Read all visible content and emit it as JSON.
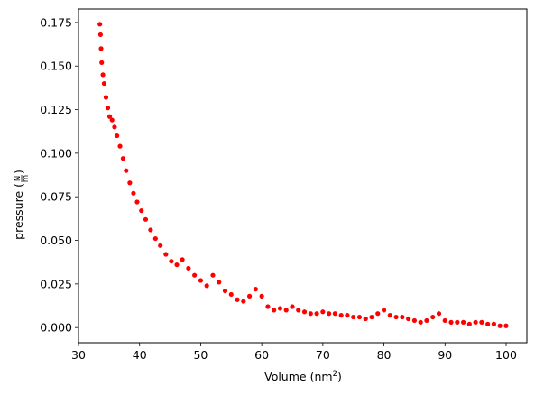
{
  "chart_data": {
    "type": "scatter",
    "xlabel": "Volume (nm²)",
    "xlabel_parts": {
      "base": "Volume (nm",
      "exp": "2",
      "close": ")"
    },
    "ylabel": "pressure (N/m)",
    "ylabel_parts": {
      "prefix": "pressure (",
      "num": "N",
      "den": "m",
      "close": ")"
    },
    "xlim": [
      30,
      103.4
    ],
    "ylim": [
      -0.0087,
      0.1827
    ],
    "xticks": [
      30,
      40,
      50,
      60,
      70,
      80,
      90,
      100
    ],
    "xtick_labels": [
      "30",
      "40",
      "50",
      "60",
      "70",
      "80",
      "90",
      "100"
    ],
    "yticks": [
      0.0,
      0.025,
      0.05,
      0.075,
      0.1,
      0.125,
      0.15,
      0.175
    ],
    "ytick_labels": [
      "0.000",
      "0.025",
      "0.050",
      "0.075",
      "0.100",
      "0.125",
      "0.150",
      "0.175"
    ],
    "marker_color": "#ff0000",
    "grid": false,
    "legend": "none",
    "series": [
      {
        "x": [
          33.5,
          33.6,
          33.7,
          33.8,
          34.0,
          34.2,
          34.5,
          34.8,
          35.1,
          35.5,
          35.9,
          36.3,
          36.8,
          37.3,
          37.8,
          38.4,
          39.0,
          39.6,
          40.3,
          41.0,
          41.8,
          42.6,
          43.4,
          44.3,
          45.2,
          46.1,
          47.0,
          48.0,
          49.0,
          50.0,
          51.0,
          52.0,
          53.0,
          54.0,
          55.0,
          56.0,
          57.0,
          58.0,
          59.0,
          60.0,
          61.0,
          62.0,
          63.0,
          64.0,
          65.0,
          66.0,
          67.0,
          68.0,
          69.0,
          70.0,
          71.0,
          72.0,
          73.0,
          74.0,
          75.0,
          76.0,
          77.0,
          78.0,
          79.0,
          80.0,
          81.0,
          82.0,
          83.0,
          84.0,
          85.0,
          86.0,
          87.0,
          88.0,
          89.0,
          90.0,
          91.0,
          92.0,
          93.0,
          94.0,
          95.0,
          96.0,
          97.0,
          98.0,
          99.0,
          100.0
        ],
        "y": [
          0.174,
          0.168,
          0.16,
          0.152,
          0.145,
          0.14,
          0.132,
          0.126,
          0.121,
          0.119,
          0.115,
          0.11,
          0.104,
          0.097,
          0.09,
          0.083,
          0.077,
          0.072,
          0.067,
          0.062,
          0.056,
          0.051,
          0.047,
          0.042,
          0.038,
          0.036,
          0.039,
          0.034,
          0.03,
          0.027,
          0.024,
          0.03,
          0.026,
          0.021,
          0.019,
          0.016,
          0.015,
          0.018,
          0.022,
          0.018,
          0.012,
          0.01,
          0.011,
          0.01,
          0.012,
          0.01,
          0.009,
          0.008,
          0.008,
          0.009,
          0.008,
          0.008,
          0.007,
          0.007,
          0.006,
          0.006,
          0.005,
          0.006,
          0.008,
          0.01,
          0.007,
          0.006,
          0.006,
          0.005,
          0.004,
          0.003,
          0.004,
          0.006,
          0.008,
          0.004,
          0.003,
          0.003,
          0.003,
          0.002,
          0.003,
          0.003,
          0.002,
          0.002,
          0.001,
          0.001
        ]
      }
    ]
  }
}
